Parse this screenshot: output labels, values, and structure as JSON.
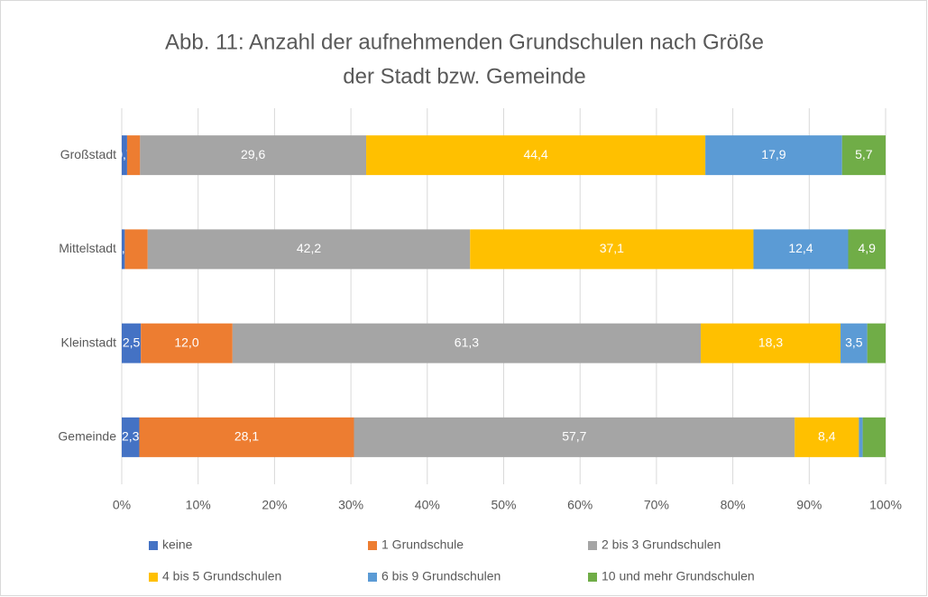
{
  "chart_data": {
    "type": "stacked-bar-horizontal",
    "title": [
      "Abb. 11: Anzahl der aufnehmenden Grundschulen nach Größe",
      "der Stadt bzw. Gemeinde"
    ],
    "categories": [
      "Großstadt",
      "Mittelstadt",
      "Kleinstadt",
      "Gemeinde"
    ],
    "series": [
      {
        "name": "keine",
        "color": "#4472c4",
        "values": [
          0.7,
          0.4,
          2.5,
          2.3
        ],
        "value_labels": [
          "0,7",
          "0,4",
          "2,5",
          "2,3"
        ]
      },
      {
        "name": "1 Grundschule",
        "color": "#ed7d31",
        "values": [
          1.7,
          3.0,
          12.0,
          28.1
        ],
        "value_labels": [
          null,
          null,
          "12,0",
          "28,1"
        ]
      },
      {
        "name": "2 bis 3 Grundschulen",
        "color": "#a5a5a5",
        "values": [
          29.6,
          42.2,
          61.3,
          57.7
        ],
        "value_labels": [
          "29,6",
          "42,2",
          "61,3",
          "57,7"
        ]
      },
      {
        "name": "4 bis 5 Grundschulen",
        "color": "#ffc000",
        "values": [
          44.4,
          37.1,
          18.3,
          8.4
        ],
        "value_labels": [
          "44,4",
          "37,1",
          "18,3",
          "8,4"
        ]
      },
      {
        "name": "6 bis 9 Grundschulen",
        "color": "#5b9bd5",
        "values": [
          17.9,
          12.4,
          3.5,
          0.5
        ],
        "value_labels": [
          "17,9",
          "12,4",
          "3,5",
          null
        ]
      },
      {
        "name": "10 und mehr Grundschulen",
        "color": "#70ad47",
        "values": [
          5.7,
          4.9,
          2.4,
          3.0
        ],
        "value_labels": [
          "5,7",
          "4,9",
          null,
          null
        ]
      }
    ],
    "xlim": [
      0,
      100
    ],
    "xticks": [
      {
        "value": 0,
        "label": "0%"
      },
      {
        "value": 10,
        "label": "10%"
      },
      {
        "value": 20,
        "label": "20%"
      },
      {
        "value": 30,
        "label": "30%"
      },
      {
        "value": 40,
        "label": "40%"
      },
      {
        "value": 50,
        "label": "50%"
      },
      {
        "value": 60,
        "label": "60%"
      },
      {
        "value": 70,
        "label": "70%"
      },
      {
        "value": 80,
        "label": "80%"
      },
      {
        "value": 90,
        "label": "90%"
      },
      {
        "value": 100,
        "label": "100%"
      }
    ],
    "grid": true,
    "legend": "bottom"
  }
}
